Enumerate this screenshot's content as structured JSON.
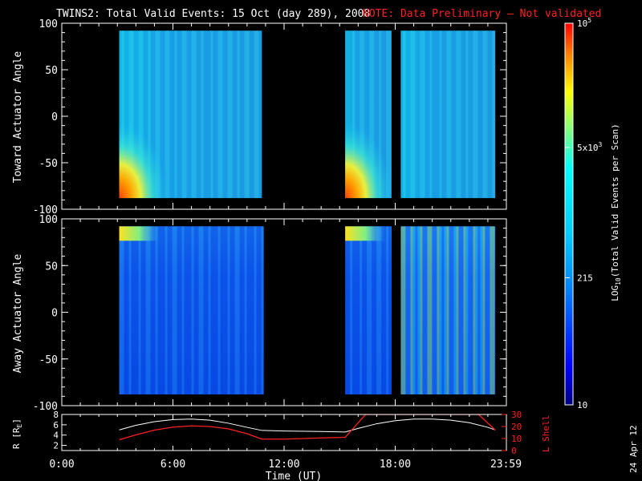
{
  "title": "TWINS2: Total Valid Events: 15 Oct (day 289), 2008",
  "note": "NOTE: Data Preliminary — Not validated",
  "date_stamp": "24 Apr 12",
  "colors": {
    "note": "#ff2020",
    "background": "#000000",
    "axes": "#ffffff",
    "r_line": "#ffffff",
    "l_line": "#ff2020"
  },
  "chart_data": [
    {
      "type": "heatmap",
      "panel": "toward",
      "ylabel": "Toward Actuator Angle",
      "ylim": [
        -100,
        100
      ],
      "yticks": [
        100,
        50,
        0,
        -50,
        -100
      ],
      "xlim_hours": [
        0,
        24
      ],
      "data_blocks_hours": [
        [
          3.1,
          10.8
        ],
        [
          15.3,
          17.8
        ],
        [
          18.3,
          23.4
        ]
      ],
      "data_angle_range": [
        -88,
        92
      ],
      "tone": "cyan-blue, peak (red-orange) near low angles at block start"
    },
    {
      "type": "heatmap",
      "panel": "away",
      "ylabel": "Away Actuator Angle",
      "ylim": [
        -100,
        100
      ],
      "yticks": [
        100,
        50,
        0,
        -50,
        -100
      ],
      "xlim_hours": [
        0,
        24
      ],
      "data_blocks_hours": [
        [
          3.1,
          10.9
        ],
        [
          15.3,
          17.8
        ],
        [
          18.3,
          23.4
        ]
      ],
      "data_angle_range": [
        -88,
        92
      ],
      "tone": "mostly blue, yellow at top-left of blocks"
    },
    {
      "type": "colorbar",
      "label": "LOG10(Total Valid Events per Scan)",
      "label_parts": {
        "pre": "LOG",
        "sub": "10",
        "post": "(Total Valid Events per Scan)"
      },
      "range": [
        10,
        100000
      ],
      "scale": "log",
      "ticks": [
        {
          "value": 100000,
          "label_base": "10",
          "label_exp": "5"
        },
        {
          "value": 5000,
          "label_base": "5x10",
          "label_exp": "3"
        },
        {
          "value": 215,
          "label_base": "215",
          "label_exp": ""
        },
        {
          "value": 10,
          "label_base": "10",
          "label_exp": ""
        }
      ]
    },
    {
      "type": "line",
      "panel": "orbit",
      "ylabel": "R [R",
      "ylabel_sub": "E",
      "ylabel_end": "]",
      "ylim": [
        1,
        8
      ],
      "yticks": [
        2,
        4,
        6,
        8
      ],
      "y2label": "L Shell",
      "y2lim": [
        0,
        30
      ],
      "y2ticks": [
        0,
        10,
        20,
        30
      ],
      "xlabel": "Time (UT)",
      "xticks": [
        "0:00",
        "6:00",
        "12:00",
        "18:00",
        "23:59"
      ],
      "xtick_hours": [
        0,
        6,
        12,
        18,
        23.98
      ],
      "series": [
        {
          "name": "R",
          "x": [
            3.1,
            4,
            5,
            6,
            7,
            8,
            9,
            10,
            10.8,
            12,
            14,
            15.3,
            16,
            17,
            18,
            19,
            20,
            21,
            22,
            23,
            23.4
          ],
          "y": [
            5.0,
            5.9,
            6.6,
            7.0,
            7.1,
            6.9,
            6.3,
            5.5,
            4.9,
            4.8,
            4.7,
            4.6,
            5.3,
            6.2,
            6.8,
            7.1,
            7.1,
            6.9,
            6.4,
            5.5,
            5.0
          ]
        },
        {
          "name": "L Shell",
          "x": [
            3.1,
            4,
            5,
            6,
            7,
            8,
            9,
            10,
            10.8,
            12,
            14,
            15.3,
            16.4,
            22.5,
            23.4
          ],
          "y": [
            9,
            13,
            17,
            19.5,
            20.5,
            20,
            18,
            14,
            9.5,
            9.5,
            10.5,
            11,
            30,
            30,
            17
          ]
        }
      ]
    }
  ]
}
